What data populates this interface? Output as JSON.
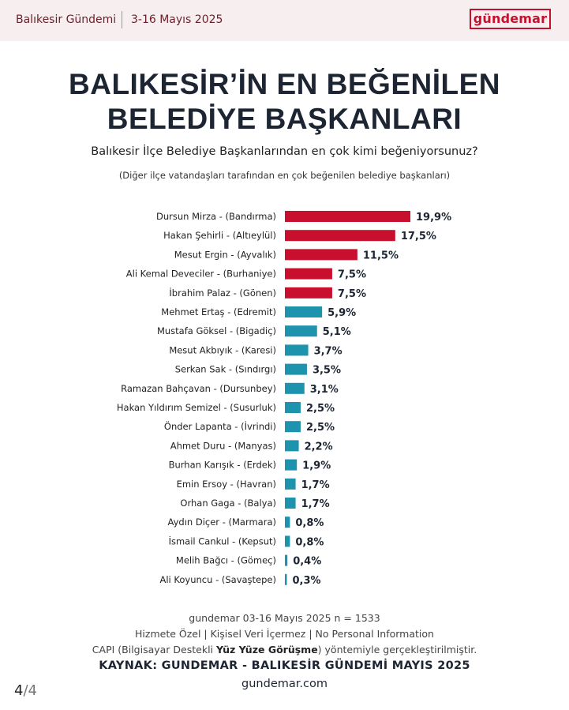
{
  "header": {
    "brand": "Balıkesir Gündemi",
    "date_range": "3-16 Mayıs 2025",
    "logo": "gündemar"
  },
  "title_line1": "BALIKESİR’İN EN BEĞENİLEN",
  "title_line2": "BELEDİYE BAŞKANLARI",
  "question": "Balıkesir İlçe Belediye Başkanlarından en çok kimi beğeniyorsunuz?",
  "note": "(Diğer ilçe vatandaşları tarafından en çok beğenilen belediye başkanları)",
  "chart_data": {
    "type": "bar",
    "orientation": "horizontal",
    "categories": [
      "Dursun Mirza - (Bandırma)",
      "Hakan Şehirli - (Altıeylül)",
      "Mesut Ergin - (Ayvalık)",
      "Ali Kemal Deveciler - (Burhaniye)",
      "İbrahim Palaz - (Gönen)",
      "Mehmet Ertaş - (Edremit)",
      "Mustafa Göksel - (Bigadiç)",
      "Mesut Akbıyık - (Karesi)",
      "Serkan Sak - (Sındırgı)",
      "Ramazan Bahçavan - (Dursunbey)",
      "Hakan Yıldırım Semizel - (Susurluk)",
      "Önder Lapanta - (İvrindi)",
      "Ahmet Duru - (Manyas)",
      "Burhan Karışık - (Erdek)",
      "Emin Ersoy - (Havran)",
      "Orhan Gaga - (Balya)",
      "Aydın Diçer - (Marmara)",
      "İsmail Cankul - (Kepsut)",
      "Melih Bağcı - (Gömeç)",
      "Ali Koyuncu - (Savaştepe)"
    ],
    "values": [
      19.9,
      17.5,
      11.5,
      7.5,
      7.5,
      5.9,
      5.1,
      3.7,
      3.5,
      3.1,
      2.5,
      2.5,
      2.2,
      1.9,
      1.7,
      1.7,
      0.8,
      0.8,
      0.4,
      0.3
    ],
    "labels": [
      "19,9%",
      "17,5%",
      "11,5%",
      "7,5%",
      "7,5%",
      "5,9%",
      "5,1%",
      "3,7%",
      "3,5%",
      "3,1%",
      "2,5%",
      "2,5%",
      "2,2%",
      "1,9%",
      "1,7%",
      "1,7%",
      "0,8%",
      "0,8%",
      "0,4%",
      "0,3%"
    ],
    "highlight_count": 5,
    "colors": {
      "highlight": "#c8102e",
      "default": "#1e93ae"
    },
    "xlim": [
      0,
      19.9
    ],
    "title": "",
    "xlabel": "",
    "ylabel": ""
  },
  "footer": {
    "line1": "gundemar 03-16 Mayıs 2025 n = 1533",
    "line2": "Hizmete Özel | Kişisel Veri İçermez | No Personal Information",
    "line3_pre": "CAPI (Bilgisayar Destekli ",
    "line3_bold": "Yüz Yüze Görüşme",
    "line3_post": ") yöntemiyle gerçekleştirilmiştir.",
    "source": "KAYNAK: GUNDEMAR - BALIKESİR GÜNDEMİ MAYIS 2025",
    "website": "gundemar.com"
  },
  "pager": {
    "current": "4",
    "total": "/4"
  }
}
